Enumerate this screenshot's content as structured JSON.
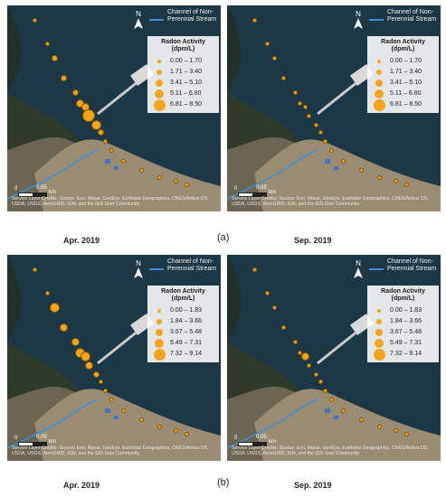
{
  "panels": [
    {
      "id": "a-apr",
      "legend": {
        "stream_label": "Channel of Non-Perennial Stream",
        "title": "Radon Activity (dpm/L)",
        "classes": [
          "0.00 – 1.70",
          "1.71 – 3.40",
          "3.41 – 5.10",
          "5.11 – 6.80",
          "6.81 – 8.50"
        ]
      },
      "north": "N",
      "scale": {
        "zero": "0",
        "val": "0.05",
        "unit": "km"
      },
      "credit": "Service Layer Credits: Source: Esri, Maxar, GeoEye, Earthstar Geographics, CNES/Airbus DS, USDA, USGS, AeroGRID, IGN, and the GIS User Community",
      "caption": "Apr. 2019",
      "samples": [
        1,
        1,
        2,
        2,
        2,
        3,
        3,
        5,
        4,
        2,
        1,
        1,
        1,
        1,
        1,
        1,
        1
      ]
    },
    {
      "id": "a-sep",
      "legend": {
        "stream_label": "Channel of Non-Perennial Stream",
        "title": "Radon Activity (dpm/L)",
        "classes": [
          "0.00 – 1.70",
          "1.71 – 3.40",
          "3.41 – 5.10",
          "5.11 – 6.80",
          "6.81 – 8.50"
        ]
      },
      "north": "N",
      "scale": {
        "zero": "0",
        "val": "0.05",
        "unit": "km"
      },
      "credit": "Service Layer Credits: Source: Esri, Maxar, GeoEye, Earthstar Geographics, CNES/Airbus DS, USDA, USGS, AeroGRID, IGN, and the GIS User Community",
      "caption": "Sep. 2019",
      "samples": [
        1,
        1,
        1,
        1,
        1,
        1,
        1,
        1,
        1,
        1,
        1,
        1,
        1,
        1,
        1,
        1,
        1
      ]
    },
    {
      "id": "b-apr",
      "legend": {
        "stream_label": "Channel of Non-Perennial Stream",
        "title": "Radon Activity (dpm/L)",
        "classes": [
          "0.00 – 1.83",
          "1.84 – 3.66",
          "3.67 – 5.48",
          "5.49 – 7.31",
          "7.32 – 9.14"
        ]
      },
      "north": "N",
      "scale": {
        "zero": "0",
        "val": "0.05",
        "unit": "km"
      },
      "credit": "Service Layer Credits: Source: Esri, Maxar, GeoEye, Earthstar Geographics, CNES/Airbus DS, USDA, USGS, AeroGRID, IGN, and the GIS User Community",
      "caption": "Apr. 2019",
      "samples": [
        1,
        1,
        4,
        3,
        3,
        4,
        4,
        3,
        2,
        1,
        1,
        1,
        1,
        1,
        1,
        1,
        1
      ]
    },
    {
      "id": "b-sep",
      "legend": {
        "stream_label": "Channel of Non-Perennial Stream",
        "title": "Radon Activity (dpm/L)",
        "classes": [
          "0.00 – 1.83",
          "1.84 – 3.66",
          "3.67 – 5.48",
          "5.49 – 7.31",
          "7.32 – 9.14"
        ]
      },
      "north": "N",
      "scale": {
        "zero": "0",
        "val": "0.05",
        "unit": "km"
      },
      "credit": "Service Layer Credits: Source: Esri, Maxar, GeoEye, Earthstar Geographics, CNES/Airbus DS, USDA, USGS, AeroGRID, IGN, and the GIS User Community",
      "caption": "Sep. 2019",
      "samples": [
        1,
        1,
        1,
        1,
        1,
        1,
        3,
        1,
        1,
        1,
        1,
        1,
        1,
        1,
        1,
        1,
        1
      ]
    }
  ],
  "labels": {
    "a": "(a)",
    "b": "(b)"
  },
  "colors": {
    "dot": "#f5a51b",
    "stream": "#3b8fd9",
    "sea": "#1d3a4a"
  }
}
